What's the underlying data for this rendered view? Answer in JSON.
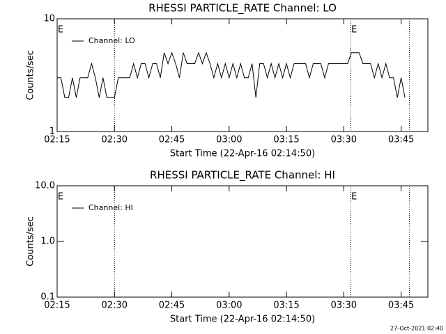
{
  "chart_data": [
    {
      "type": "line",
      "title": "RHESSI PARTICLE_RATE Channel: LO",
      "xlabel": "Start Time (22-Apr-16 02:14:50)",
      "ylabel": "Counts/sec",
      "log_y": true,
      "legend": "upper left",
      "x": [
        0,
        1,
        2,
        3,
        4,
        5,
        6,
        7,
        8,
        9,
        10,
        11,
        12,
        13,
        14,
        15,
        16,
        17,
        18,
        19,
        20,
        21,
        22,
        23,
        24,
        25,
        26,
        27,
        28,
        29,
        30,
        31,
        32,
        33,
        34,
        35,
        36,
        37,
        38,
        39,
        40,
        41,
        42,
        43,
        44,
        45,
        46,
        47,
        48,
        49,
        50,
        51,
        52,
        53,
        54,
        55,
        56,
        57,
        58,
        59,
        60,
        61,
        62,
        63,
        64,
        65,
        66,
        67,
        68,
        69,
        70,
        71,
        72,
        73,
        74,
        75,
        76,
        77,
        78,
        79,
        80,
        81,
        82,
        83,
        84,
        85,
        86,
        87,
        88,
        89,
        90,
        91
      ],
      "series": [
        {
          "name": "Channel: LO",
          "color": "#000000",
          "values": [
            3,
            3,
            2,
            2,
            3,
            2,
            3,
            3,
            3,
            4,
            3,
            2,
            3,
            2,
            2,
            2,
            3,
            3,
            3,
            3,
            4,
            3,
            4,
            4,
            3,
            4,
            4,
            3,
            5,
            4,
            5,
            4,
            3,
            5,
            4,
            4,
            4,
            5,
            4,
            5,
            4,
            3,
            4,
            3,
            4,
            3,
            4,
            3,
            4,
            3,
            3,
            4,
            2,
            4,
            4,
            3,
            4,
            3,
            4,
            3,
            4,
            3,
            4,
            4,
            4,
            4,
            3,
            4,
            4,
            4,
            3,
            4,
            4,
            4,
            4,
            4,
            4,
            5,
            5,
            5,
            4,
            4,
            4,
            3,
            4,
            3,
            4,
            3,
            3,
            2,
            3,
            2
          ]
        }
      ],
      "xlim": [
        0,
        97
      ],
      "ylim": [
        1,
        10
      ],
      "xticks": [
        {
          "value": 0,
          "label": "02:15"
        },
        {
          "value": 15,
          "label": "02:30"
        },
        {
          "value": 30,
          "label": "02:45"
        },
        {
          "value": 45,
          "label": "03:00"
        },
        {
          "value": 60,
          "label": "03:15"
        },
        {
          "value": 75,
          "label": "03:30"
        },
        {
          "value": 90,
          "label": "03:45"
        }
      ],
      "yticks": [
        1,
        10
      ],
      "vlines": [
        15,
        76.8,
        92.2
      ],
      "annotations": [
        {
          "text": "E",
          "x": 0
        },
        {
          "text": "E",
          "x": 76.8
        }
      ]
    },
    {
      "type": "line",
      "title": "RHESSI PARTICLE_RATE Channel: HI",
      "xlabel": "Start Time (22-Apr-16 02:14:50)",
      "ylabel": "Counts/sec",
      "log_y": true,
      "legend": "upper left",
      "x": [],
      "series": [
        {
          "name": "Channel: HI",
          "color": "#000000",
          "values": []
        }
      ],
      "xlim": [
        0,
        97
      ],
      "ylim": [
        0.1,
        10
      ],
      "xticks": [
        {
          "value": 0,
          "label": "02:15"
        },
        {
          "value": 15,
          "label": "02:30"
        },
        {
          "value": 30,
          "label": "02:45"
        },
        {
          "value": 45,
          "label": "03:00"
        },
        {
          "value": 60,
          "label": "03:15"
        },
        {
          "value": 75,
          "label": "03:30"
        },
        {
          "value": 90,
          "label": "03:45"
        }
      ],
      "yticks": [
        0.1,
        {
          "value": 1,
          "label": "1.0"
        },
        {
          "value": 10,
          "label": "10.0"
        }
      ],
      "vlines": [
        15,
        76.8,
        92.2
      ],
      "annotations": [
        {
          "text": "E",
          "x": 76.8
        },
        {
          "text": "E",
          "x": 0
        }
      ]
    }
  ],
  "footer": "27-Oct-2021 02:40"
}
